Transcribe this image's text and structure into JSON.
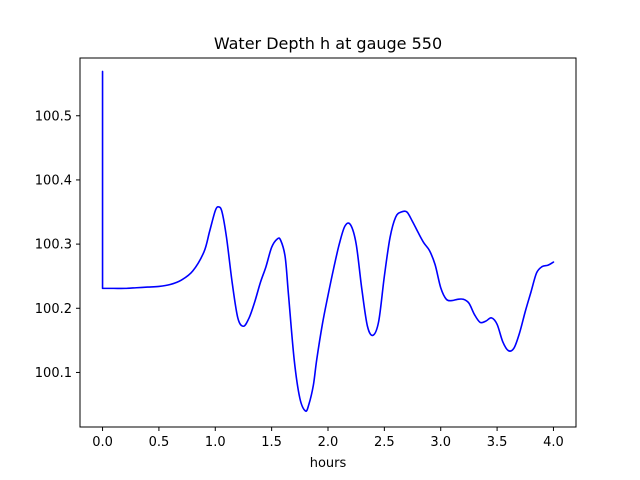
{
  "chart_data": {
    "type": "line",
    "title": "Water Depth h at gauge 550",
    "xlabel": "hours",
    "ylabel": "",
    "xlim": [
      -0.2,
      4.2
    ],
    "ylim": [
      100.015,
      100.59
    ],
    "xticks": [
      0.0,
      0.5,
      1.0,
      1.5,
      2.0,
      2.5,
      3.0,
      3.5,
      4.0
    ],
    "xtick_labels": [
      "0.0",
      "0.5",
      "1.0",
      "1.5",
      "2.0",
      "2.5",
      "3.0",
      "3.5",
      "4.0"
    ],
    "yticks": [
      100.1,
      100.2,
      100.3,
      100.4,
      100.5
    ],
    "ytick_labels": [
      "100.1",
      "100.2",
      "100.3",
      "100.4",
      "100.5"
    ],
    "grid": false,
    "line_color": "#0000ff",
    "series": [
      {
        "x": [
          0.0,
          0.0,
          0.0,
          0.1,
          0.2,
          0.3,
          0.4,
          0.5,
          0.6,
          0.7,
          0.8,
          0.9,
          0.95,
          1.0,
          1.03,
          1.06,
          1.1,
          1.15,
          1.2,
          1.25,
          1.3,
          1.35,
          1.4,
          1.45,
          1.5,
          1.55,
          1.58,
          1.62,
          1.65,
          1.7,
          1.75,
          1.8,
          1.83,
          1.87,
          1.9,
          1.95,
          2.0,
          2.05,
          2.1,
          2.15,
          2.2,
          2.25,
          2.3,
          2.35,
          2.4,
          2.45,
          2.5,
          2.55,
          2.6,
          2.65,
          2.7,
          2.75,
          2.8,
          2.85,
          2.9,
          2.95,
          3.0,
          3.05,
          3.1,
          3.15,
          3.2,
          3.25,
          3.3,
          3.35,
          3.4,
          3.45,
          3.5,
          3.55,
          3.6,
          3.65,
          3.7,
          3.75,
          3.8,
          3.85,
          3.9,
          3.95,
          4.0
        ],
        "y": [
          100.569,
          100.3,
          100.231,
          100.231,
          100.231,
          100.232,
          100.233,
          100.234,
          100.237,
          100.244,
          100.258,
          100.288,
          100.32,
          100.352,
          100.358,
          100.35,
          100.31,
          100.24,
          100.185,
          100.172,
          100.185,
          100.21,
          100.24,
          100.265,
          100.295,
          100.308,
          100.306,
          100.28,
          100.22,
          100.12,
          100.06,
          100.04,
          100.05,
          100.08,
          100.12,
          100.175,
          100.22,
          100.262,
          100.3,
          100.328,
          100.33,
          100.3,
          100.23,
          100.172,
          100.158,
          100.18,
          100.25,
          100.31,
          100.342,
          100.35,
          100.35,
          100.335,
          100.318,
          100.302,
          100.29,
          100.268,
          100.232,
          100.214,
          100.212,
          100.214,
          100.214,
          100.208,
          100.19,
          100.178,
          100.18,
          100.185,
          100.175,
          100.148,
          100.134,
          100.138,
          100.162,
          100.195,
          100.225,
          100.255,
          100.265,
          100.267,
          100.272
        ]
      }
    ]
  }
}
